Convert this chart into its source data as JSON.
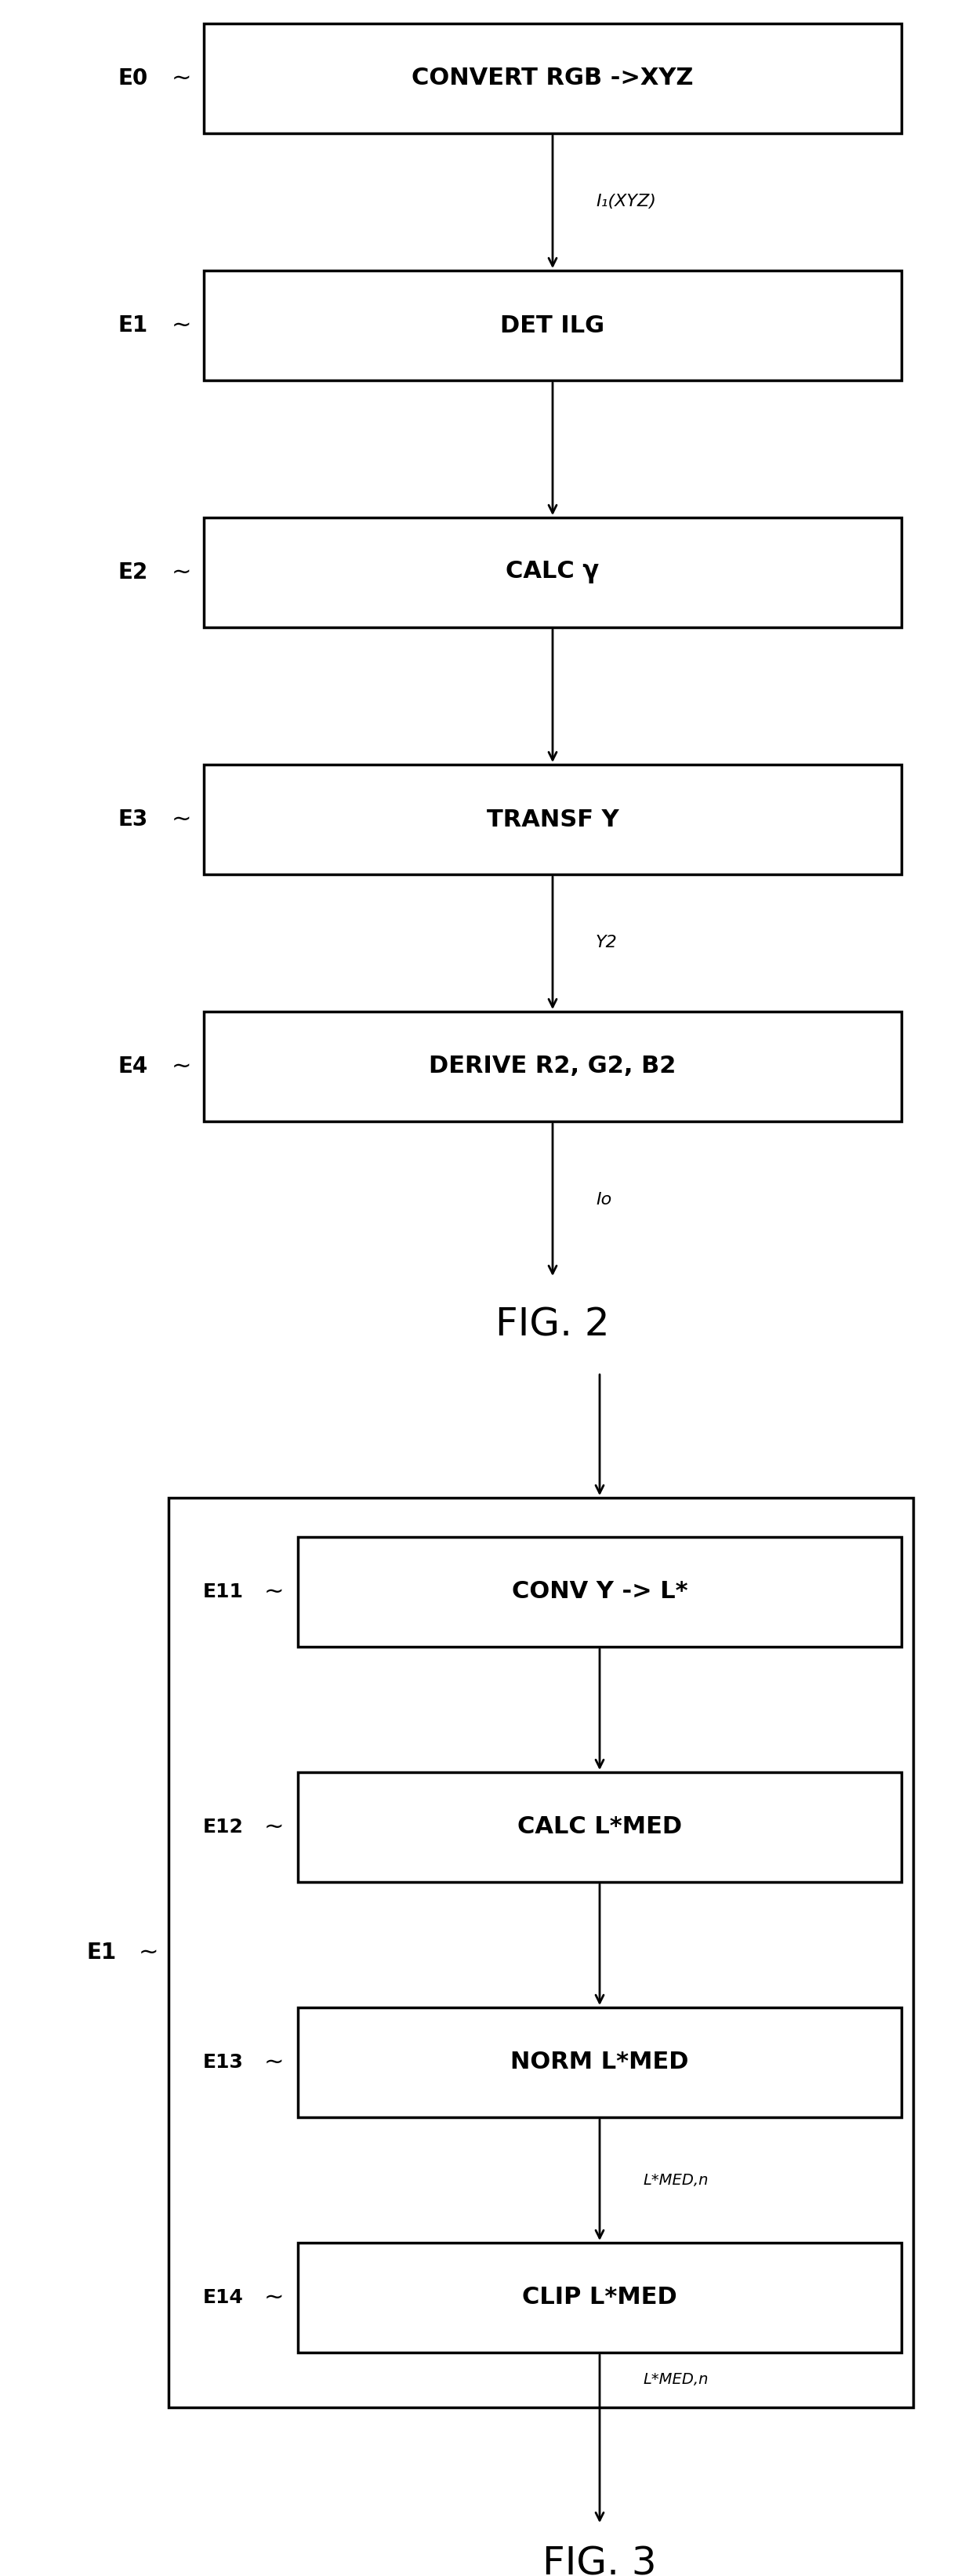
{
  "fig2_boxes": [
    {
      "label": "CONVERT RGB ->XYZ",
      "tag": "E0"
    },
    {
      "label": "DET ILG",
      "tag": "E1"
    },
    {
      "label": "CALC γ",
      "tag": "E2"
    },
    {
      "label": "TRANSF Y",
      "tag": "E3"
    },
    {
      "label": "DERIVE R2, G2, B2",
      "tag": "E4"
    }
  ],
  "fig2_arrow_labels": [
    "I₁(XYZ)",
    "",
    "",
    "Y2",
    "Io"
  ],
  "fig2_title": "FIG. 2",
  "fig3_boxes": [
    {
      "label": "CONV Y -> L*",
      "tag": "E11"
    },
    {
      "label": "CALC L*MED",
      "tag": "E12"
    },
    {
      "label": "NORM L*MED",
      "tag": "E13"
    },
    {
      "label": "CLIP L*MED",
      "tag": "E14"
    }
  ],
  "fig3_arrow_labels": [
    "",
    "",
    "L*MED,n",
    "L*MED,n"
  ],
  "fig3_title": "FIG. 3",
  "fig3_outer_tag": "E1",
  "box_color": "#000000",
  "bg_color": "#ffffff",
  "text_color": "#000000"
}
